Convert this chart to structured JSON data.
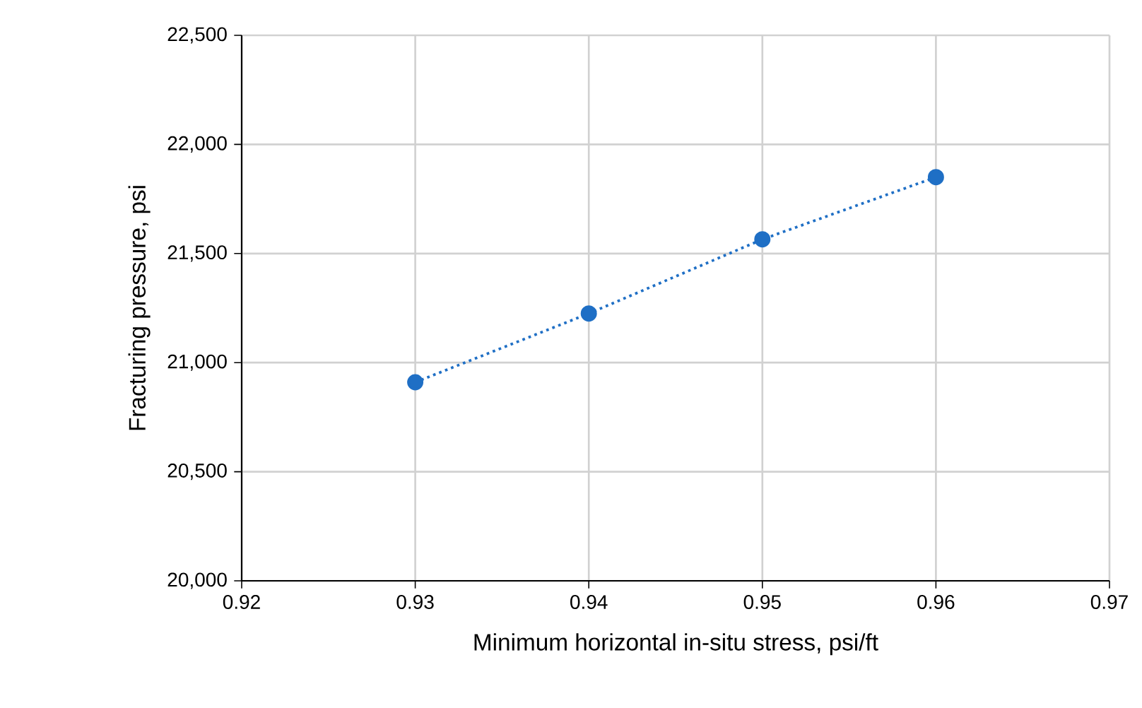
{
  "chart_data": {
    "type": "line",
    "xlabel": "Minimum horizontal in-situ stress, psi/ft",
    "ylabel": "Fracturing pressure, psi",
    "x": [
      0.93,
      0.94,
      0.95,
      0.96
    ],
    "series": [
      {
        "color": "#1f6fc5",
        "values": [
          20910,
          21225,
          21565,
          21850
        ]
      }
    ],
    "xlim": [
      0.92,
      0.97
    ],
    "xticks": [
      0.92,
      0.93,
      0.94,
      0.95,
      0.96,
      0.97
    ],
    "ylim": [
      20000,
      22500
    ],
    "yticks": [
      {
        "value": 20000,
        "label": "20,000"
      },
      {
        "value": 20500,
        "label": "20,500"
      },
      {
        "value": 21000,
        "label": "21,000"
      },
      {
        "value": 21500,
        "label": "21,500"
      },
      {
        "value": 22000,
        "label": "22,000"
      },
      {
        "value": 22500,
        "label": "22,500"
      }
    ],
    "grid": true,
    "marker": "circle",
    "line_style": "dotted"
  }
}
